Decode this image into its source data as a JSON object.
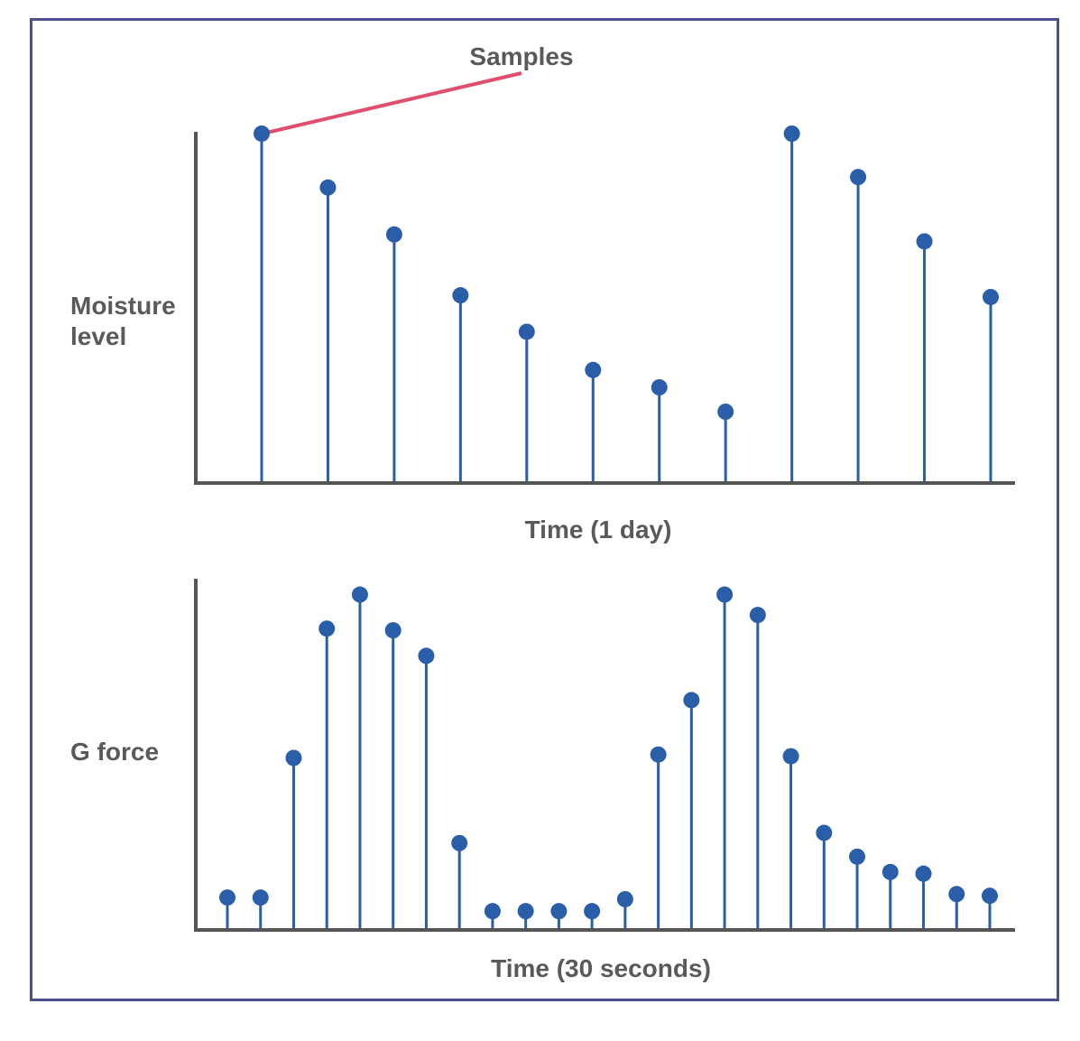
{
  "colors": {
    "frame": "#4a5090",
    "stem": "#2a5ea8",
    "axis": "#555555",
    "annotation_line": "#e0506e",
    "text": "#5a5a5a"
  },
  "annotation": {
    "label": "Samples"
  },
  "chart_data": [
    {
      "type": "stem",
      "title": "",
      "ylabel_lines": [
        "Moisture",
        "level"
      ],
      "xlabel": "Time (1 day)",
      "ylim": [
        0,
        100
      ],
      "x": [
        1,
        2,
        3,
        4,
        5,
        6,
        7,
        8,
        9,
        10,
        11,
        12
      ],
      "values": [
        100,
        84.5,
        71,
        53.5,
        43,
        32,
        27,
        20,
        100,
        87.5,
        69,
        53
      ]
    },
    {
      "type": "stem",
      "title": "",
      "ylabel_lines": [
        "G force"
      ],
      "xlabel": "Time (30 seconds)",
      "ylim": [
        0,
        100
      ],
      "x": [
        1,
        2,
        3,
        4,
        5,
        6,
        7,
        8,
        9,
        10,
        11,
        12,
        13,
        14,
        15,
        16,
        17,
        18,
        19,
        20,
        21,
        22,
        23,
        24
      ],
      "values": [
        9,
        9,
        50,
        88,
        98,
        87.5,
        80,
        25,
        5,
        5,
        5,
        5,
        8.5,
        51,
        67,
        98,
        92,
        50.5,
        28,
        21,
        16.5,
        16,
        10,
        9.5
      ]
    }
  ]
}
